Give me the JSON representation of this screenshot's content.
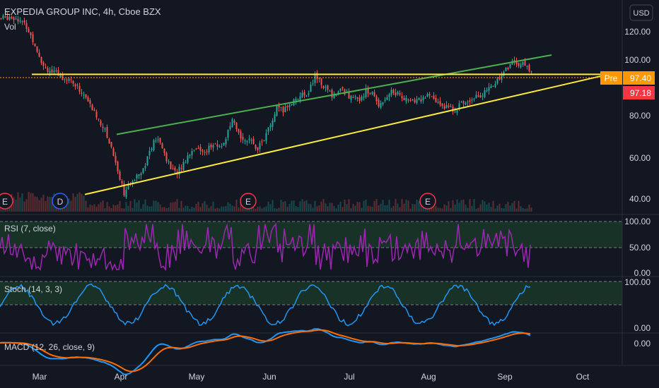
{
  "header": {
    "title": "EXPEDIA GROUP INC, 4h, Cboe BZX",
    "volume_label": "Vol",
    "currency_button": "USD"
  },
  "price_scale": {
    "ticks": [
      "120.00",
      "100.00",
      "80.00",
      "60.00",
      "40.00"
    ],
    "pre_label": "Pre",
    "pre_value": "97.40",
    "last_value": "97.18"
  },
  "events": [
    {
      "label": "E",
      "color": "#f23645"
    },
    {
      "label": "D",
      "color": "#2962ff"
    },
    {
      "label": "E",
      "color": "#f23645"
    },
    {
      "label": "E",
      "color": "#f23645"
    }
  ],
  "panes": {
    "rsi": {
      "label": "RSI (7, close)",
      "ticks": [
        "100.00",
        "50.00",
        "0.00"
      ]
    },
    "stoch": {
      "label": "Stoch (14, 3, 3)",
      "ticks": [
        "100.00",
        "0.00"
      ]
    },
    "macd": {
      "label": "MACD (12, 26, close, 9)",
      "ticks": [
        "0.00"
      ]
    }
  },
  "time_axis": [
    "Mar",
    "Apr",
    "May",
    "Jun",
    "Jul",
    "Aug",
    "Sep",
    "Oct"
  ],
  "colors": {
    "background": "#131722",
    "up": "#26a69a",
    "down": "#ef5350",
    "trendline_green": "#4caf50",
    "trendline_yellow": "#ffeb3b",
    "rsi": "#9c27b0",
    "stoch": "#2196f3",
    "macd": "#2196f3",
    "signal": "#ff6d00",
    "pre_badge": "#ff9800",
    "last_badge": "#f23645"
  },
  "chart_data": {
    "type": "candlestick",
    "price_range": [
      32,
      128
    ],
    "months": [
      "Mar",
      "Apr",
      "May",
      "Jun",
      "Jul",
      "Aug",
      "Sep",
      "Oct"
    ],
    "close_path": [
      [
        0,
        122
      ],
      [
        4,
        123
      ],
      [
        8,
        122
      ],
      [
        12,
        118
      ],
      [
        16,
        110
      ],
      [
        20,
        100
      ],
      [
        24,
        97
      ],
      [
        28,
        95
      ],
      [
        32,
        94
      ],
      [
        36,
        90
      ],
      [
        40,
        85
      ],
      [
        44,
        78
      ],
      [
        48,
        72
      ],
      [
        52,
        62
      ],
      [
        56,
        48
      ],
      [
        58,
        41
      ],
      [
        61,
        44
      ],
      [
        64,
        50
      ],
      [
        67,
        52
      ],
      [
        70,
        60
      ],
      [
        73,
        66
      ],
      [
        76,
        62
      ],
      [
        79,
        54
      ],
      [
        82,
        50
      ],
      [
        85,
        53
      ],
      [
        88,
        58
      ],
      [
        91,
        62
      ],
      [
        94,
        60
      ],
      [
        97,
        61
      ],
      [
        100,
        63
      ],
      [
        103,
        62
      ],
      [
        106,
        66
      ],
      [
        109,
        74
      ],
      [
        112,
        68
      ],
      [
        115,
        66
      ],
      [
        118,
        64
      ],
      [
        121,
        62
      ],
      [
        124,
        66
      ],
      [
        127,
        72
      ],
      [
        130,
        80
      ],
      [
        133,
        79
      ],
      [
        136,
        82
      ],
      [
        139,
        85
      ],
      [
        142,
        86
      ],
      [
        145,
        88
      ],
      [
        148,
        95
      ],
      [
        151,
        92
      ],
      [
        154,
        88
      ],
      [
        157,
        86
      ],
      [
        160,
        89
      ],
      [
        163,
        87
      ],
      [
        166,
        84
      ],
      [
        169,
        85
      ],
      [
        172,
        88
      ],
      [
        175,
        87
      ],
      [
        178,
        82
      ],
      [
        181,
        85
      ],
      [
        184,
        88
      ],
      [
        187,
        87
      ],
      [
        190,
        85
      ],
      [
        193,
        83
      ],
      [
        196,
        84
      ],
      [
        199,
        85
      ],
      [
        202,
        86
      ],
      [
        205,
        83
      ],
      [
        208,
        82
      ],
      [
        211,
        80
      ],
      [
        214,
        80
      ],
      [
        217,
        82
      ],
      [
        220,
        84
      ],
      [
        223,
        86
      ],
      [
        226,
        86
      ],
      [
        229,
        88
      ],
      [
        232,
        91
      ],
      [
        235,
        95
      ],
      [
        238,
        98
      ],
      [
        241,
        102
      ],
      [
        244,
        101
      ],
      [
        247,
        100
      ],
      [
        250,
        97
      ]
    ],
    "trendlines": [
      {
        "name": "green_upper",
        "from": [
          55,
          68
        ],
        "to": [
          260,
          105
        ]
      },
      {
        "name": "yellow_horizontal",
        "from": [
          15,
          96
        ],
        "to": [
          287,
          96
        ]
      },
      {
        "name": "yellow_lower",
        "from": [
          40,
          40
        ],
        "to": [
          287,
          96
        ]
      }
    ],
    "price_lines": {
      "pre": 97.4,
      "last": 97.18
    },
    "rsi": {
      "range": [
        0,
        100
      ],
      "upper": 70,
      "lower": 30,
      "mid": 50
    },
    "stoch": {
      "range": [
        0,
        100
      ],
      "upper": 80,
      "lower": 20
    },
    "macd": {
      "zero": 0
    }
  }
}
